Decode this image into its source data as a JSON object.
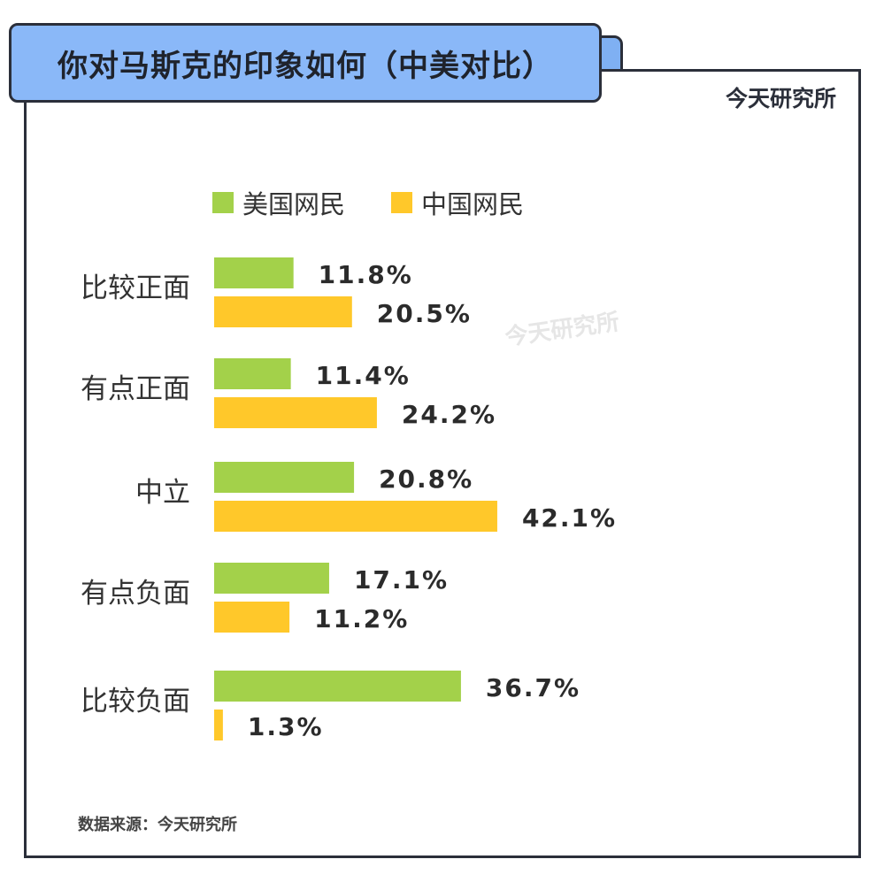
{
  "header": {
    "title": "你对马斯克的印象如何（中美对比）"
  },
  "brand": "今天研究所",
  "watermark": "今天研究所",
  "source": "数据来源：今天研究所",
  "colors": {
    "us": "#a3d14a",
    "cn": "#ffc82a",
    "title_bg": "#8ab8f8",
    "border": "#2b2f3a"
  },
  "chart_data": {
    "type": "bar",
    "orientation": "horizontal",
    "categories": [
      "比较正面",
      "有点正面",
      "中立",
      "有点负面",
      "比较负面"
    ],
    "series": [
      {
        "name": "美国网民",
        "values": [
          11.8,
          11.4,
          20.8,
          17.1,
          36.7
        ],
        "labels": [
          "11.8%",
          "11.4%",
          "20.8%",
          "17.1%",
          "36.7%"
        ]
      },
      {
        "name": "中国网民",
        "values": [
          20.5,
          24.2,
          42.1,
          11.2,
          1.3
        ],
        "labels": [
          "20.5%",
          "24.2%",
          "42.1%",
          "11.2%",
          "1.3%"
        ]
      }
    ],
    "unit": "%",
    "legend": "top"
  }
}
